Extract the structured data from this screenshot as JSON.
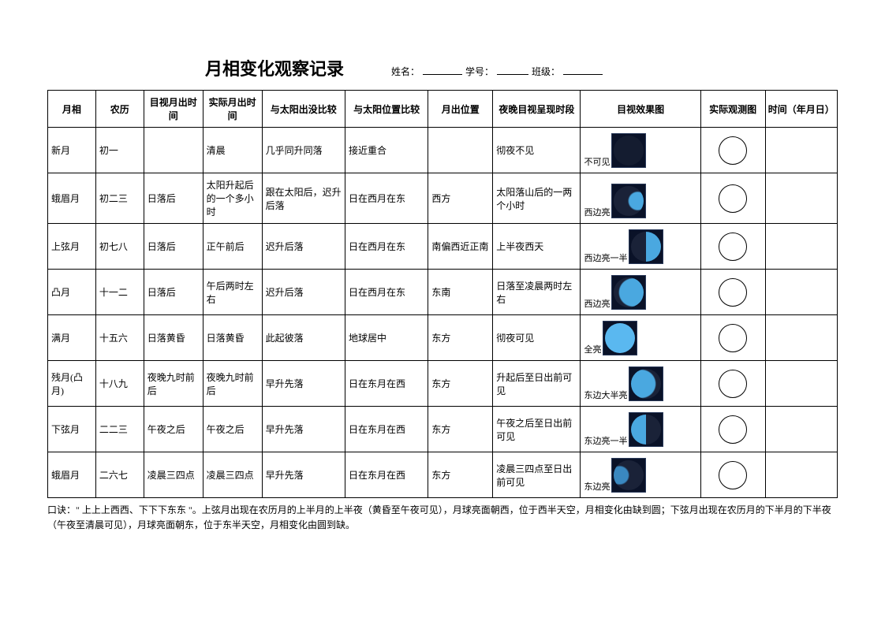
{
  "title": "月相变化观察记录",
  "meta": {
    "name_label": "姓名：",
    "id_label": "学号：",
    "class_label": "班级："
  },
  "headers": [
    "月相",
    "农历",
    "目视月出时间",
    "实际月出时间",
    "与太阳出没比较",
    "与太阳位置比较",
    "月出位置",
    "夜晚目视呈现时段",
    "目视效果图",
    "实际观测图",
    "时间（年月日）"
  ],
  "moonClasses": [
    "new-moon",
    "wax-cres",
    "first-q",
    "wax-gib",
    "full",
    "wan-gib",
    "last-q",
    "wan-cres"
  ],
  "rows": [
    {
      "c": [
        "新月",
        "初一",
        "",
        "清晨",
        "几乎同升同落",
        "接近重合",
        "",
        "彻夜不见"
      ],
      "phaseLabel": "不可见"
    },
    {
      "c": [
        "蛾眉月",
        "初二三",
        "日落后",
        "太阳升起后的一个多小时",
        "跟在太阳后，迟升后落",
        "日在西月在东",
        "西方",
        "太阳落山后的一两个小时"
      ],
      "phaseLabel": "西边亮"
    },
    {
      "c": [
        "上弦月",
        "初七八",
        "日落后",
        "正午前后",
        "迟升后落",
        "日在西月在东",
        "南偏西近正南",
        "上半夜西天"
      ],
      "phaseLabel": "西边亮一半"
    },
    {
      "c": [
        "凸月",
        "十一二",
        "日落后",
        "午后两时左右",
        "迟升后落",
        "日在西月在东",
        "东南",
        "日落至凌晨两时左右"
      ],
      "phaseLabel": "西边亮"
    },
    {
      "c": [
        "满月",
        "十五六",
        "日落黄昏",
        "日落黄昏",
        "此起彼落",
        "地球居中",
        "东方",
        "彻夜可见"
      ],
      "phaseLabel": "全亮"
    },
    {
      "c": [
        "残月(凸月)",
        "十八九",
        "夜晚九时前后",
        "夜晚九时前后",
        "早升先落",
        "日在东月在西",
        "东方",
        "升起后至日出前可见"
      ],
      "phaseLabel": "东边大半亮"
    },
    {
      "c": [
        "下弦月",
        "二二三",
        "午夜之后",
        "午夜之后",
        "早升先落",
        "日在东月在西",
        "东方",
        "午夜之后至日出前可见"
      ],
      "phaseLabel": "东边亮一半"
    },
    {
      "c": [
        "蛾眉月",
        "二六七",
        "凌晨三四点",
        "凌晨三四点",
        "早升先落",
        "日在东月在西",
        "东方",
        "凌晨三四点至日出前可见"
      ],
      "phaseLabel": "东边亮"
    }
  ],
  "footnote": "口诀：\" 上上上西西、下下下东东 \"。上弦月出现在农历月的上半月的上半夜（黄昏至午夜可见），月球亮面朝西，位于西半天空，月相变化由缺到圆；下弦月出现在农历月的下半月的下半夜（午夜至清晨可见），月球亮面朝东，位于东半天空，月相变化由圆到缺。"
}
